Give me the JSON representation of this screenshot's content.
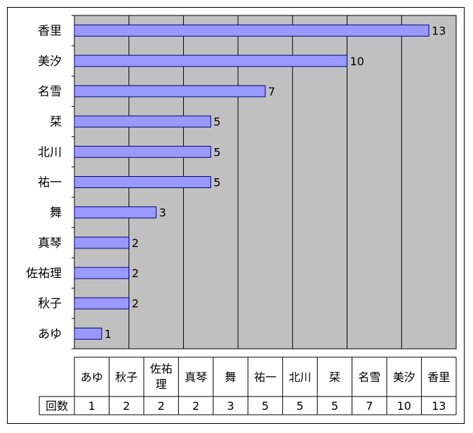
{
  "chart_data": {
    "type": "bar",
    "orientation": "horizontal",
    "categories": [
      "あゆ",
      "秋子",
      "佐祐理",
      "真琴",
      "舞",
      "祐一",
      "北川",
      "栞",
      "名雪",
      "美汐",
      "香里"
    ],
    "values": [
      1,
      2,
      2,
      2,
      3,
      5,
      5,
      5,
      7,
      10,
      13
    ],
    "xlim": [
      0,
      14
    ],
    "grid": true,
    "data_labels": true,
    "table": {
      "header": [
        "あゆ",
        "秋子",
        "佐祐理",
        "真琴",
        "舞",
        "祐一",
        "北川",
        "栞",
        "名雪",
        "美汐",
        "香里"
      ],
      "row_label": "回数",
      "row": [
        "1",
        "2",
        "2",
        "2",
        "3",
        "5",
        "5",
        "5",
        "7",
        "10",
        "13"
      ]
    }
  },
  "colors": {
    "plot_bg": "#c0c0c0",
    "bar_fill": "#9999ff",
    "bar_stroke": "#000080",
    "grid": "#000000"
  }
}
